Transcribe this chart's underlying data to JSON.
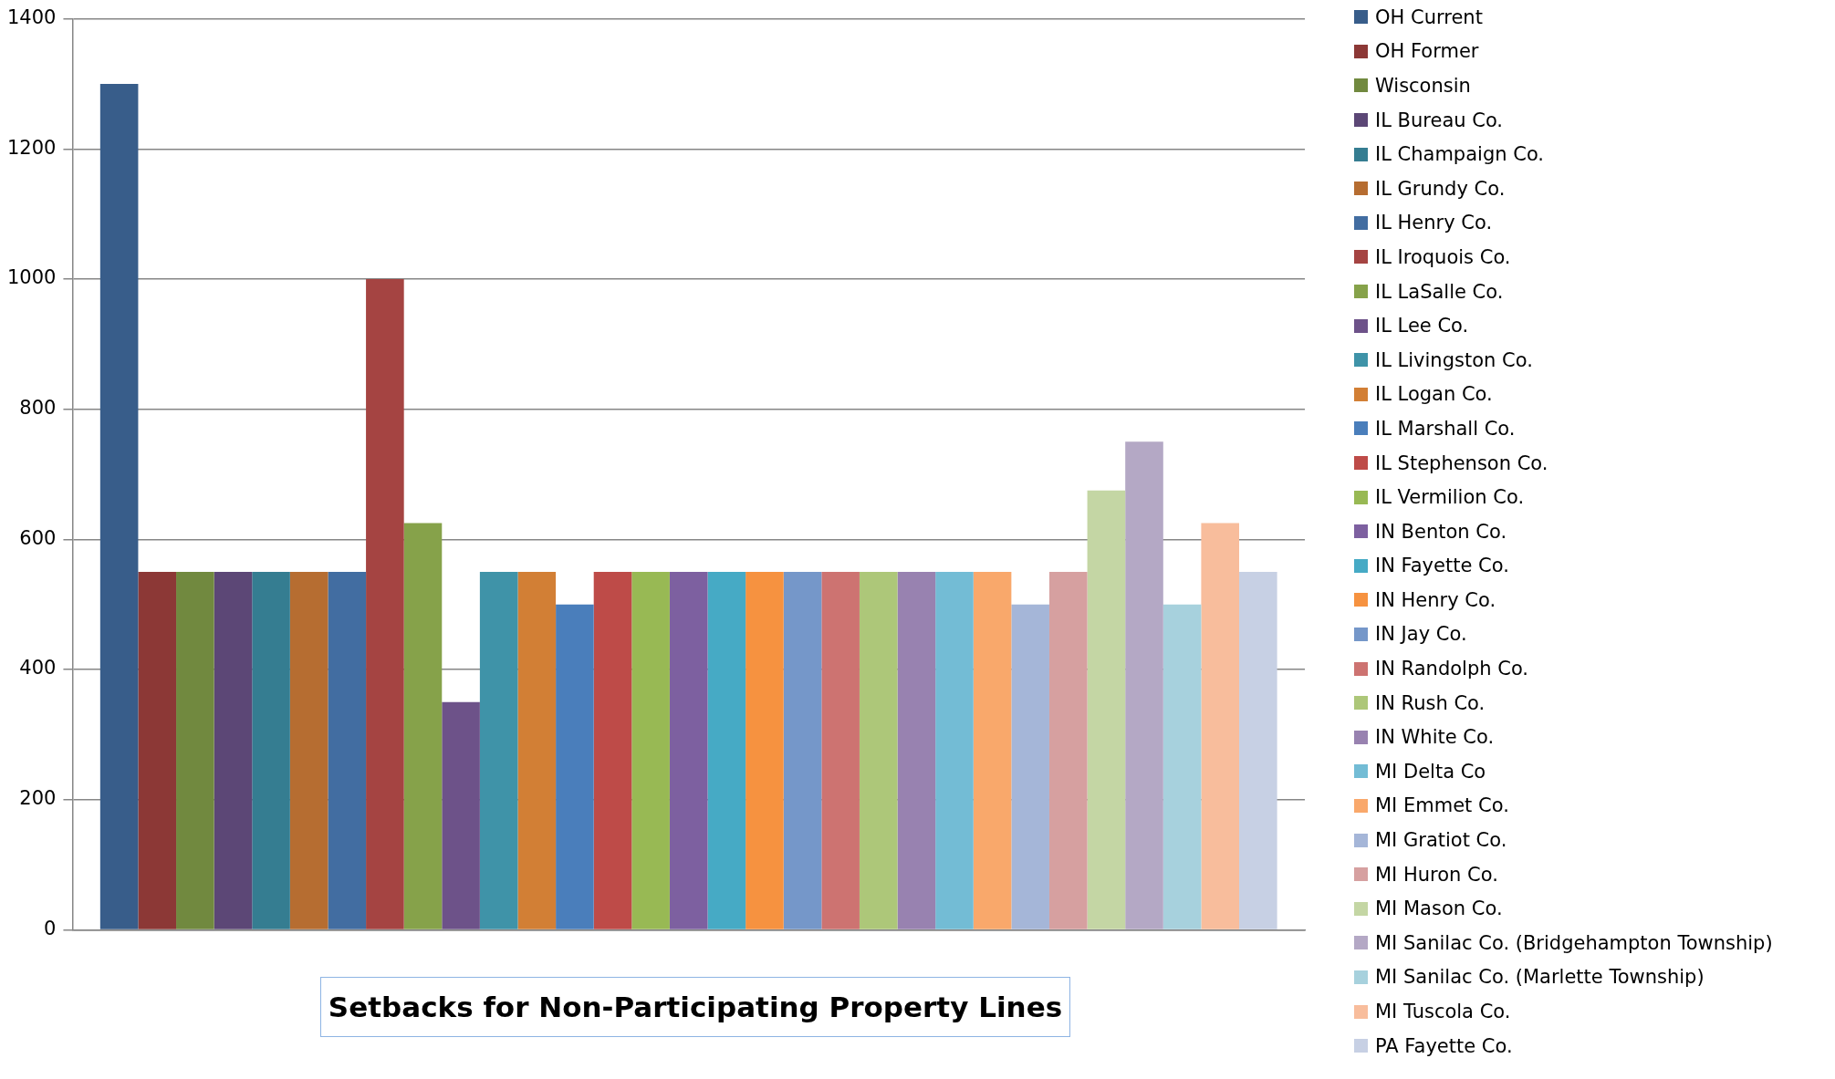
{
  "chart_data": {
    "type": "bar",
    "title": "Setbacks for Non-Participating Property Lines",
    "categories": [
      null
    ],
    "ylim": [
      0,
      1400
    ],
    "yticks": [
      0,
      200,
      400,
      600,
      800,
      1000,
      1200,
      1400
    ],
    "grid": "y",
    "legend": "right",
    "tick_labels": "y",
    "series": [
      {
        "name": "OH Current",
        "color": "#385d8a",
        "values": [
          1300
        ]
      },
      {
        "name": "OH Former",
        "color": "#8c3836",
        "values": [
          550
        ]
      },
      {
        "name": "Wisconsin",
        "color": "#71893f",
        "values": [
          550
        ]
      },
      {
        "name": "IL Bureau Co.",
        "color": "#5c4776",
        "values": [
          550
        ]
      },
      {
        "name": "IL Champaign Co.",
        "color": "#357d91",
        "values": [
          550
        ]
      },
      {
        "name": "IL Grundy Co.",
        "color": "#b66d31",
        "values": [
          550
        ]
      },
      {
        "name": "IL Henry Co.",
        "color": "#426da1",
        "values": [
          550
        ]
      },
      {
        "name": "IL Iroquois Co.",
        "color": "#a54442",
        "values": [
          1000
        ]
      },
      {
        "name": "IL LaSalle Co.",
        "color": "#86a24a",
        "values": [
          625
        ]
      },
      {
        "name": "IL Lee Co.",
        "color": "#6d5289",
        "values": [
          350
        ]
      },
      {
        "name": "IL Livingston Co.",
        "color": "#3f93a8",
        "values": [
          550
        ]
      },
      {
        "name": "IL Logan Co.",
        "color": "#d27f35",
        "values": [
          550
        ]
      },
      {
        "name": "IL Marshall Co.",
        "color": "#4a7ebb",
        "values": [
          500
        ]
      },
      {
        "name": "IL Stephenson Co.",
        "color": "#be4b48",
        "values": [
          550
        ]
      },
      {
        "name": "IL Vermilion Co.",
        "color": "#98b954",
        "values": [
          550
        ]
      },
      {
        "name": "IN Benton Co.",
        "color": "#7d60a0",
        "values": [
          550
        ]
      },
      {
        "name": "IN Fayette Co.",
        "color": "#46aac5",
        "values": [
          550
        ]
      },
      {
        "name": "IN Henry Co.",
        "color": "#f69240",
        "values": [
          550
        ]
      },
      {
        "name": "IN Jay Co.",
        "color": "#7597c9",
        "values": [
          550
        ]
      },
      {
        "name": "IN Randolph Co.",
        "color": "#cd7371",
        "values": [
          550
        ]
      },
      {
        "name": "IN Rush Co.",
        "color": "#adc779",
        "values": [
          550
        ]
      },
      {
        "name": "IN White Co.",
        "color": "#9882b0",
        "values": [
          550
        ]
      },
      {
        "name": "MI Delta Co",
        "color": "#73bcd5",
        "values": [
          550
        ]
      },
      {
        "name": "MI Emmet Co.",
        "color": "#f9a86b",
        "values": [
          550
        ]
      },
      {
        "name": "MI Gratiot Co.",
        "color": "#a5b6d8",
        "values": [
          500
        ]
      },
      {
        "name": "MI Huron Co.",
        "color": "#d6a0a0",
        "values": [
          550
        ]
      },
      {
        "name": "MI Mason Co.",
        "color": "#c4d6a4",
        "values": [
          675
        ]
      },
      {
        "name": "MI Sanilac Co. (Bridgehampton Township)",
        "color": "#b4a8c5",
        "values": [
          750
        ]
      },
      {
        "name": "MI Sanilac Co. (Marlette Township)",
        "color": "#a7d1dd",
        "values": [
          500
        ]
      },
      {
        "name": "MI Tuscola Co.",
        "color": "#f8bd9c",
        "values": [
          625
        ]
      },
      {
        "name": "PA Fayette Co.",
        "color": "#c7d0e4",
        "values": [
          550
        ]
      }
    ]
  }
}
